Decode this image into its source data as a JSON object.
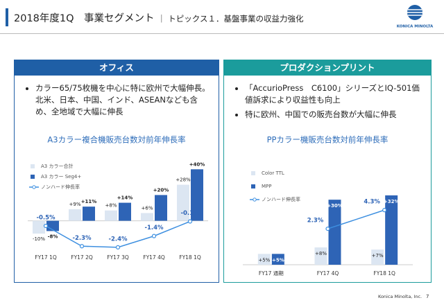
{
  "header": {
    "title": "2018年度1Q　事業セグメント",
    "subtitle": "｜ トピックス１．基盤事業の収益力強化",
    "logo": "KONICA MINOLTA"
  },
  "panels": [
    {
      "title": "オフィス",
      "bullets": [
        "カラー65/75枚機を中心に特に欧州で大幅伸長。北米、日本、中国、インド、ASEANなども含め、全地域で大幅に伸長"
      ]
    },
    {
      "title": "プロダクションプリント",
      "bullets": [
        "「AccurioPress　C6100」シリーズとIQ-501価値訴求により収益性も向上",
        "特に欧州、中国での販売台数が大幅に伸長"
      ]
    }
  ],
  "chart_data": [
    {
      "type": "bar",
      "title": "A3カラー複合機販売台数対前年伸長率",
      "categories": [
        "FY17 1Q",
        "FY17 2Q",
        "FY17 3Q",
        "FY17 4Q",
        "FY18 1Q"
      ],
      "series": [
        {
          "name": "A3 カラー合計",
          "color": "#dce6f2",
          "values": [
            -10,
            9,
            8,
            6,
            28
          ],
          "value_labels": [
            "-10%",
            "+9%",
            "+8%",
            "+6%",
            "+28%"
          ]
        },
        {
          "name": "A3 カラー Seg4+",
          "color": "#2e64b6",
          "values": [
            -8,
            11,
            14,
            20,
            40
          ],
          "value_labels": [
            "-8%",
            "+11%",
            "+14%",
            "+20%",
            "+40%"
          ]
        },
        {
          "name": "ノンハード伸長率",
          "type": "line",
          "axis": "y2",
          "color": "#3d8fe0",
          "values": [
            -0.5,
            -2.3,
            -2.4,
            -1.4,
            -0.1
          ],
          "value_labels": [
            "-0.5%",
            "-2.3%",
            "-2.4%",
            "-1.4%",
            "-0.1%"
          ]
        }
      ],
      "ylim": [
        -25,
        45
      ],
      "y2lim": [
        -2.9,
        5.1
      ]
    },
    {
      "type": "bar",
      "title": "PPカラー機販売台数対前年伸長率",
      "categories": [
        "FY17 通期",
        "FY17 4Q",
        "FY18 1Q"
      ],
      "series": [
        {
          "name": "Color TTL",
          "color": "#dce6f2",
          "values": [
            5,
            8,
            7
          ],
          "value_labels": [
            "+5%",
            "+8%",
            "+7%"
          ]
        },
        {
          "name": "MPP",
          "color": "#2e64b6",
          "values": [
            5,
            30,
            32
          ],
          "value_labels": [
            "+5%",
            "+30%",
            "+32%"
          ]
        },
        {
          "name": "ノンハード伸長率",
          "type": "line",
          "axis": "y2",
          "color": "#3d8fe0",
          "values": [
            null,
            2.3,
            4.3
          ],
          "value_labels": [
            null,
            "2.3%",
            "4.3%"
          ]
        }
      ],
      "ylim": [
        0,
        39
      ],
      "y2lim": [
        -1.55,
        7.5
      ]
    }
  ],
  "footer": {
    "company": "Konica Minolta, Inc.",
    "page": "7"
  }
}
